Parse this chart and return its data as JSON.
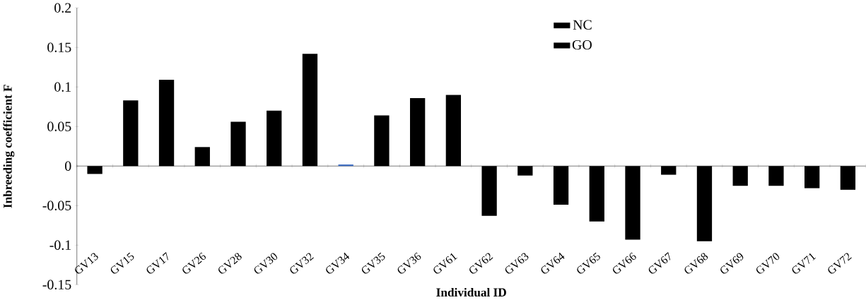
{
  "chart_data": {
    "type": "bar",
    "xlabel": "Individual ID",
    "ylabel": "Inbreeding coefficient F",
    "categories": [
      "GV13",
      "GV15",
      "GV17",
      "GV26",
      "GV28",
      "GV30",
      "GV32",
      "GV34",
      "GV35",
      "GV36",
      "GV61",
      "GV62",
      "GV63",
      "GV64",
      "GV65",
      "GV66",
      "GV67",
      "GV68",
      "GV69",
      "GV70",
      "GV71",
      "GV72"
    ],
    "series": [
      {
        "name": "NC",
        "color": "#000000",
        "colors": [
          "#000000",
          "#000000",
          "#000000",
          "#000000",
          "#000000",
          "#000000",
          "#000000",
          "#4472c4",
          "#000000",
          "#000000",
          null,
          null,
          null,
          null,
          null,
          null,
          null,
          null,
          null,
          null,
          null,
          null
        ],
        "values": [
          -0.01,
          0.083,
          0.109,
          0.024,
          0.056,
          0.07,
          0.142,
          0.002,
          0.064,
          0.086,
          null,
          null,
          null,
          null,
          null,
          null,
          null,
          null,
          null,
          null,
          null,
          null
        ]
      },
      {
        "name": "GO",
        "color": "#000000",
        "values": [
          null,
          null,
          null,
          null,
          null,
          null,
          null,
          null,
          null,
          null,
          0.09,
          -0.063,
          -0.012,
          -0.049,
          -0.07,
          -0.093,
          -0.011,
          -0.095,
          -0.025,
          -0.025,
          -0.028,
          -0.03
        ]
      }
    ],
    "ylim": [
      -0.15,
      0.2
    ],
    "yticks": [
      -0.15,
      -0.1,
      -0.05,
      0,
      0.05,
      0.1,
      0.15,
      0.2
    ],
    "legend": "top"
  }
}
